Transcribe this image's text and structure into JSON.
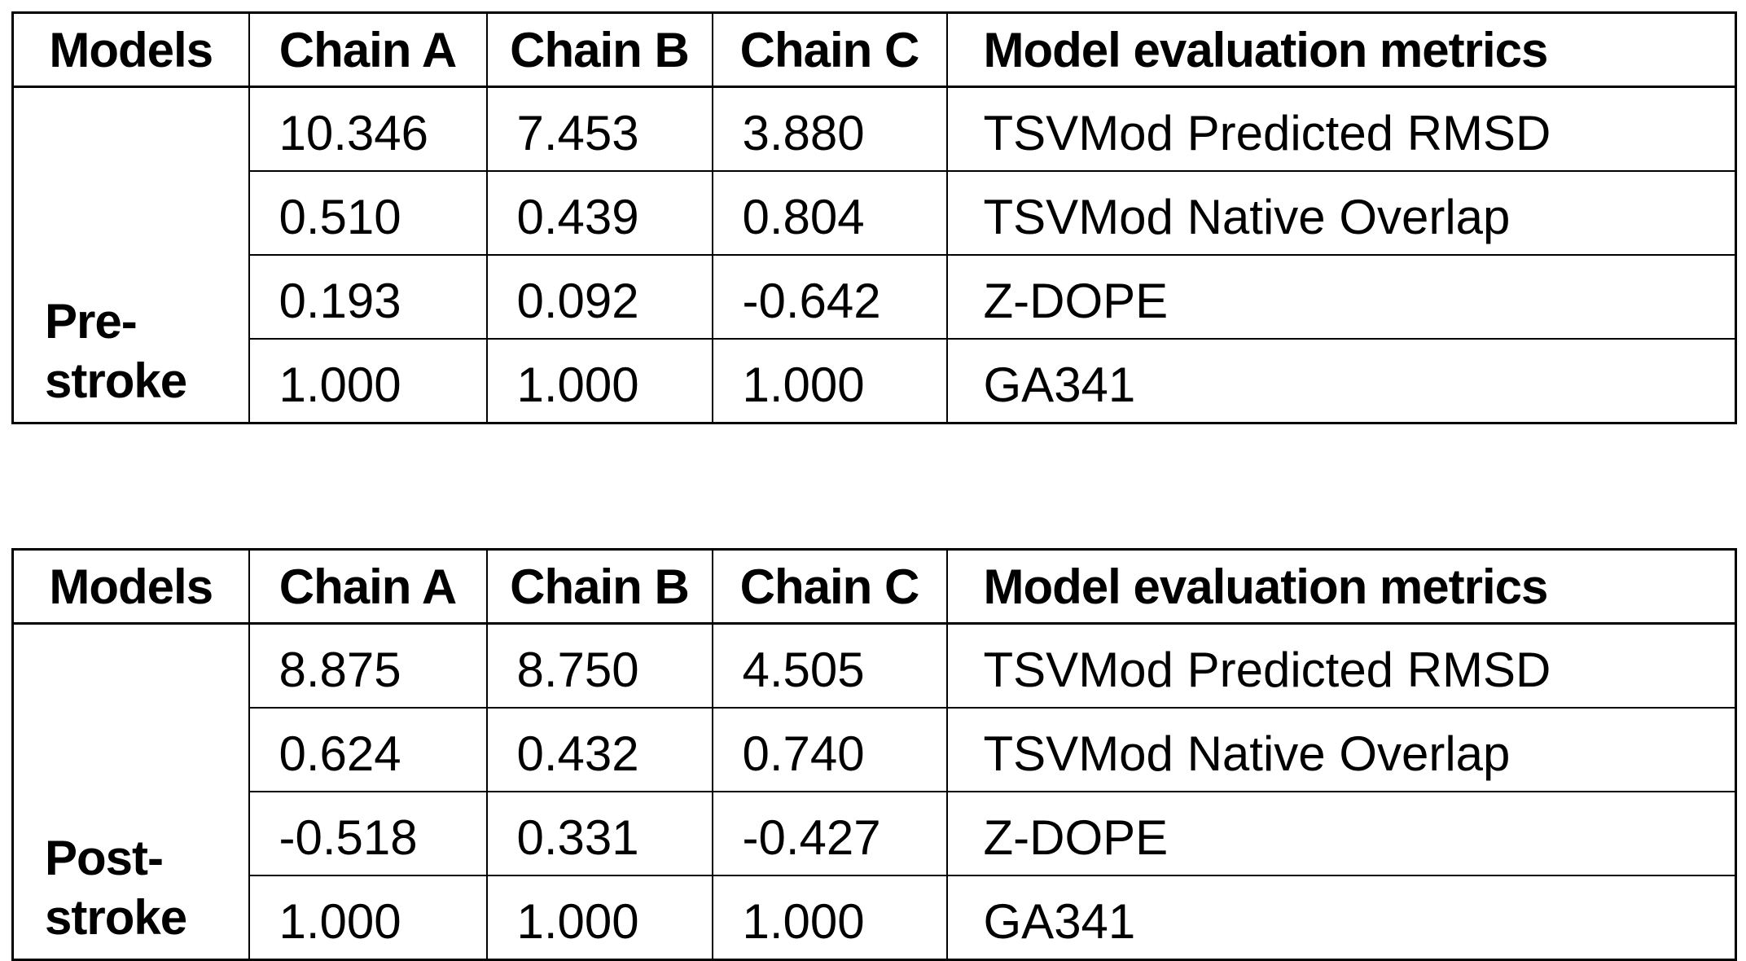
{
  "tables": [
    {
      "group_label": "Pre-\nstroke",
      "headers": {
        "models": "Models",
        "chain_a": "Chain A",
        "chain_b": "Chain B",
        "chain_c": "Chain C",
        "metrics": "Model evaluation metrics"
      },
      "rows": [
        {
          "chain_a": "10.346",
          "chain_b": "7.453",
          "chain_c": "3.880",
          "metric": "TSVMod Predicted RMSD"
        },
        {
          "chain_a": "0.510",
          "chain_b": "0.439",
          "chain_c": "0.804",
          "metric": "TSVMod Native Overlap"
        },
        {
          "chain_a": "0.193",
          "chain_b": "0.092",
          "chain_c": "-0.642",
          "metric": "Z-DOPE"
        },
        {
          "chain_a": "1.000",
          "chain_b": "1.000",
          "chain_c": "1.000",
          "metric": "GA341"
        }
      ]
    },
    {
      "group_label": "Post-\nstroke",
      "headers": {
        "models": "Models",
        "chain_a": "Chain A",
        "chain_b": "Chain B",
        "chain_c": "Chain C",
        "metrics": "Model evaluation metrics"
      },
      "rows": [
        {
          "chain_a": "8.875",
          "chain_b": "8.750",
          "chain_c": "4.505",
          "metric": "TSVMod Predicted RMSD"
        },
        {
          "chain_a": "0.624",
          "chain_b": "0.432",
          "chain_c": "0.740",
          "metric": "TSVMod Native Overlap"
        },
        {
          "chain_a": "-0.518",
          "chain_b": "0.331",
          "chain_c": "-0.427",
          "metric": "Z-DOPE"
        },
        {
          "chain_a": "1.000",
          "chain_b": "1.000",
          "chain_c": "1.000",
          "metric": "GA341"
        }
      ]
    }
  ],
  "colors": {
    "background": "#ffffff",
    "border": "#000000",
    "text": "#000000"
  }
}
